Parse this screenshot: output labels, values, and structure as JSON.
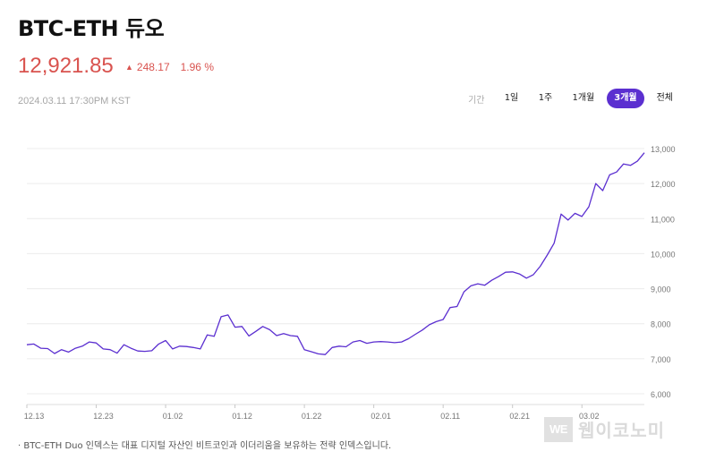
{
  "header": {
    "title": "BTC-ETH 듀오",
    "price": "12,921.85",
    "change": "248.17",
    "change_pct": "1.96 %",
    "timestamp": "2024.03.11 17:30PM KST",
    "up_color": "#d9534f"
  },
  "period": {
    "label": "기간",
    "options": [
      "1일",
      "1주",
      "1개월",
      "3개월",
      "전체"
    ],
    "selected": "3개월",
    "accent": "#5b2fd0"
  },
  "footnote": "· BTC-ETH Duo 인덱스는 대표 디지털 자산인 비트코인과 이더리움을 보유하는 전략 인덱스입니다.",
  "watermark": {
    "logo": "WE",
    "text": "웹이코노미"
  },
  "chart_data": {
    "type": "line",
    "line_color": "#5b2fd0",
    "grid": true,
    "y_axis_position": "right",
    "ylim": [
      6000,
      13000
    ],
    "yticks": [
      "6,000",
      "7,000",
      "8,000",
      "9,000",
      "10,000",
      "11,000",
      "12,000",
      "13,000"
    ],
    "ytick_values": [
      6000,
      7000,
      8000,
      9000,
      10000,
      11000,
      12000,
      13000
    ],
    "xticks": [
      "12.13",
      "12.23",
      "01.02",
      "01.12",
      "01.22",
      "02.01",
      "02.11",
      "02.21",
      "03.02"
    ],
    "xtick_index": [
      0,
      10,
      20,
      30,
      40,
      50,
      60,
      70,
      80
    ],
    "values": [
      7400,
      7420,
      7300,
      7290,
      7150,
      7260,
      7190,
      7300,
      7360,
      7480,
      7450,
      7280,
      7260,
      7160,
      7400,
      7300,
      7220,
      7210,
      7230,
      7420,
      7520,
      7280,
      7360,
      7350,
      7320,
      7280,
      7680,
      7640,
      8200,
      8250,
      7900,
      7920,
      7650,
      7780,
      7920,
      7830,
      7660,
      7720,
      7660,
      7640,
      7260,
      7200,
      7140,
      7120,
      7320,
      7360,
      7340,
      7480,
      7520,
      7440,
      7480,
      7490,
      7480,
      7460,
      7480,
      7570,
      7700,
      7820,
      7970,
      8060,
      8120,
      8460,
      8490,
      8910,
      9080,
      9140,
      9100,
      9240,
      9350,
      9470,
      9480,
      9420,
      9300,
      9400,
      9640,
      9960,
      10300,
      11130,
      10960,
      11150,
      11060,
      11340,
      12000,
      11800,
      12250,
      12330,
      12560,
      12520,
      12640,
      12880
    ]
  }
}
